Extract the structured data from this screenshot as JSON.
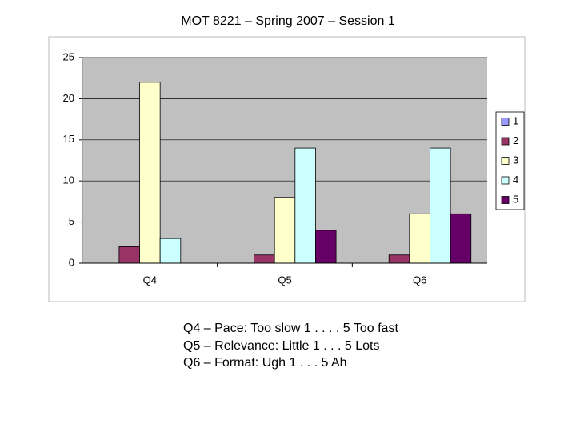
{
  "chart_data": {
    "type": "bar",
    "title": "MOT 8221 – Spring 2007 – Session 1",
    "categories": [
      "Q4",
      "Q5",
      "Q6"
    ],
    "series": [
      {
        "name": "1",
        "color": "#9999ff",
        "values": [
          0,
          0,
          0
        ]
      },
      {
        "name": "2",
        "color": "#993366",
        "values": [
          2,
          1,
          1
        ]
      },
      {
        "name": "3",
        "color": "#ffffcc",
        "values": [
          22,
          8,
          6
        ]
      },
      {
        "name": "4",
        "color": "#ccffff",
        "values": [
          3,
          14,
          14
        ]
      },
      {
        "name": "5",
        "color": "#660066",
        "values": [
          0,
          4,
          6
        ]
      }
    ],
    "ylim": [
      0,
      25
    ],
    "yticks": [
      0,
      5,
      10,
      15,
      20,
      25
    ],
    "grid": true,
    "legend": "right"
  },
  "notes": [
    "Q4 – Pace: Too slow 1 . . . . 5 Too fast",
    "Q5 – Relevance: Little 1 . . . 5 Lots",
    "Q6 – Format: Ugh 1 . . . 5 Ah"
  ]
}
